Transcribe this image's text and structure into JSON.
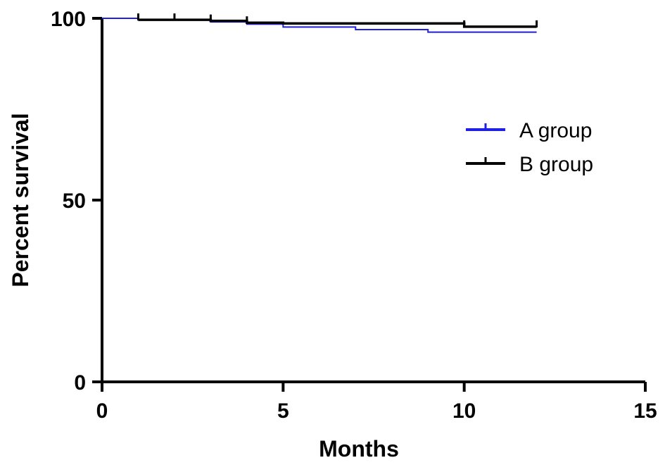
{
  "chart_data": {
    "type": "line",
    "subtype": "kaplan-meier-step",
    "title": "",
    "xlabel": "Months",
    "ylabel": "Percent survival",
    "xlim": [
      0,
      15
    ],
    "ylim": [
      0,
      100
    ],
    "x_ticks": [
      0,
      5,
      10,
      15
    ],
    "y_ticks": [
      0,
      50,
      100
    ],
    "grid": false,
    "legend_position": "right",
    "series": [
      {
        "name": "A group",
        "color": "#1f1fe6",
        "steps": [
          [
            0,
            100
          ],
          [
            1,
            99.6
          ],
          [
            3,
            99.0
          ],
          [
            4,
            98.4
          ],
          [
            5,
            97.6
          ],
          [
            7,
            96.9
          ],
          [
            9,
            96.2
          ],
          [
            12,
            96.2
          ]
        ],
        "censor_x": []
      },
      {
        "name": "B group",
        "color": "#000000",
        "steps": [
          [
            1,
            99.6
          ],
          [
            3,
            99.3
          ],
          [
            4,
            98.8
          ],
          [
            5,
            98.6
          ],
          [
            7,
            98.6
          ],
          [
            10,
            97.7
          ],
          [
            12,
            97.7
          ]
        ],
        "censor_x": [
          1,
          2,
          3,
          4,
          10,
          12
        ]
      }
    ]
  }
}
